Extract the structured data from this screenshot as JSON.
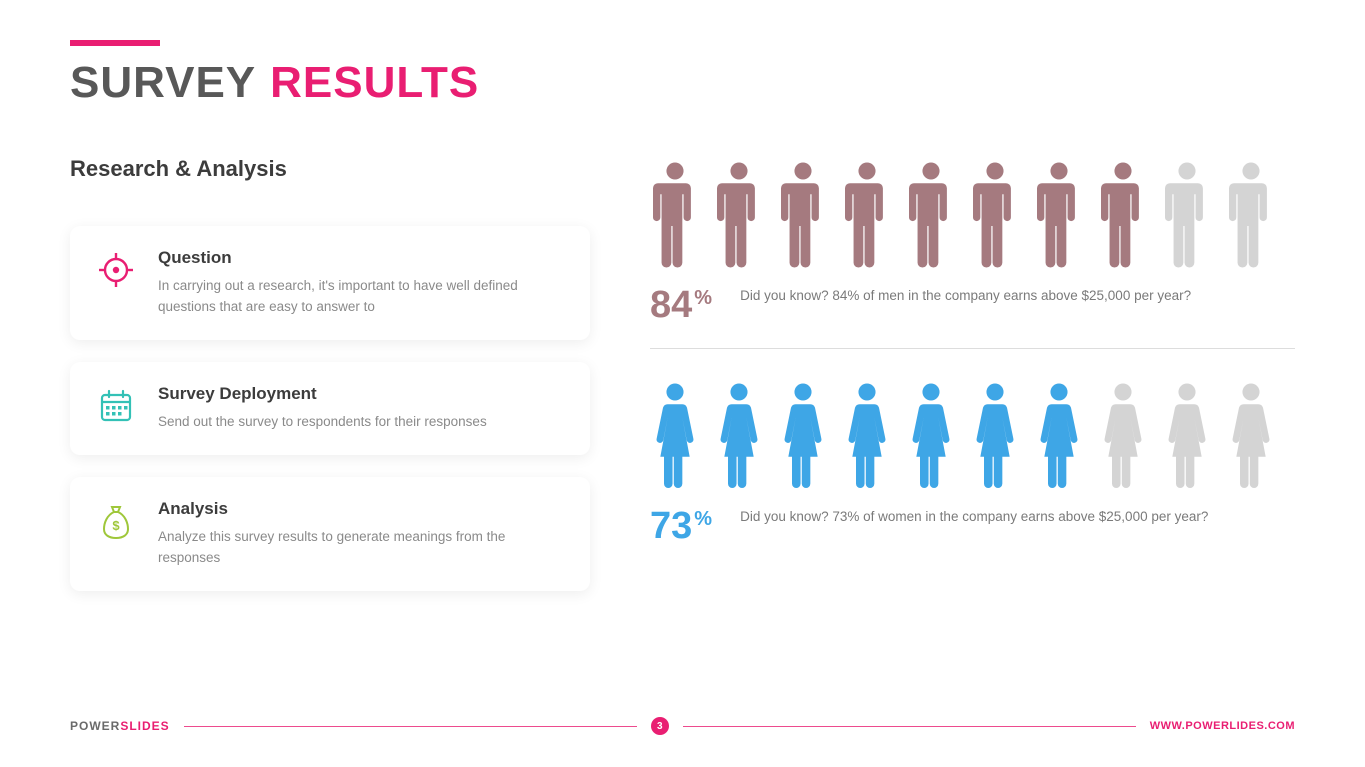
{
  "colors": {
    "accent": "#e91e72",
    "title_dark": "#585858",
    "text_muted": "#8a8a8a",
    "card_icon_1": "#e91e72",
    "card_icon_2": "#33c1b6",
    "card_icon_3": "#9fc73a",
    "stat1_active": "#a57a7f",
    "stat1_inactive": "#d4d4d4",
    "stat2_active": "#3ea6e6",
    "stat2_inactive": "#d4d4d4",
    "divider": "#dddddd",
    "background": "#ffffff"
  },
  "title": {
    "part1": "SURVEY",
    "part2": "RESULTS"
  },
  "subtitle": "Research & Analysis",
  "cards": [
    {
      "icon": "target-icon",
      "heading": "Question",
      "body": "In carrying out a research, it's important to have well defined questions that are easy to answer to"
    },
    {
      "icon": "calendar-icon",
      "heading": "Survey Deployment",
      "body": "Send out the survey to respondents for their responses"
    },
    {
      "icon": "money-bag-icon",
      "heading": "Analysis",
      "body": "Analyze this survey results to generate meanings from the responses"
    }
  ],
  "stats": [
    {
      "type": "pictogram",
      "figure": "man",
      "total": 10,
      "active": 8,
      "percent": "84",
      "percent_suffix": "%",
      "description": "Did you know? 84% of men in the company earns above $25,000 per year?",
      "active_color": "#a57a7f",
      "inactive_color": "#d4d4d4",
      "percent_color": "#a57a7f"
    },
    {
      "type": "pictogram",
      "figure": "woman",
      "total": 10,
      "active": 7,
      "percent": "73",
      "percent_suffix": "%",
      "description": "Did you know? 73% of women in the company earns above $25,000 per year?",
      "active_color": "#3ea6e6",
      "inactive_color": "#d4d4d4",
      "percent_color": "#3ea6e6"
    }
  ],
  "footer": {
    "brand_part1": "POWER",
    "brand_part2": "SLIDES",
    "page": "3",
    "url": "WWW.POWERLIDES.COM"
  }
}
